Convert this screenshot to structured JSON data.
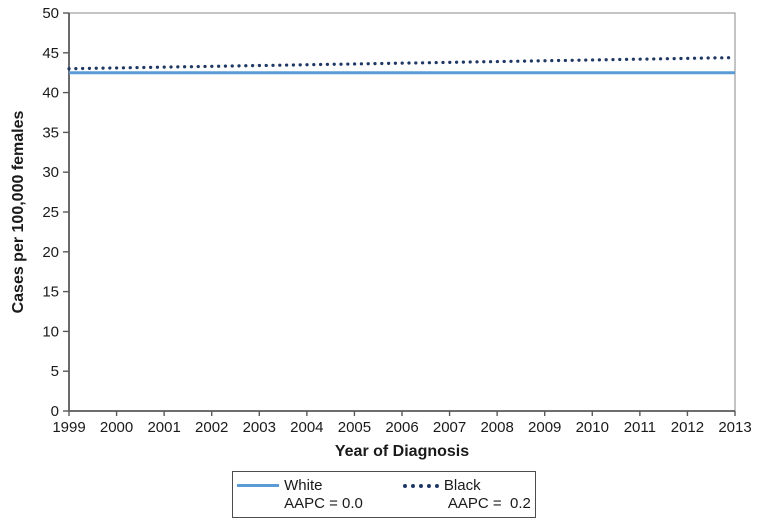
{
  "chart_data": {
    "type": "line",
    "title": "",
    "xlabel": "Year of Diagnosis",
    "ylabel": "Cases per 100,000 females",
    "x": [
      1999,
      2000,
      2001,
      2002,
      2003,
      2004,
      2005,
      2006,
      2007,
      2008,
      2009,
      2010,
      2011,
      2012,
      2013
    ],
    "ylim": [
      0,
      50
    ],
    "ytick_step": 5,
    "grid": false,
    "legend_position": "bottom",
    "series": [
      {
        "name": "White",
        "aapc_label": "AAPC = 0.0",
        "line_style": "solid",
        "color": "#5B9BD5",
        "values": [
          42.5,
          42.5,
          42.5,
          42.5,
          42.5,
          42.5,
          42.5,
          42.5,
          42.5,
          42.5,
          42.5,
          42.5,
          42.5,
          42.5,
          42.5
        ]
      },
      {
        "name": "Black",
        "aapc_label": "AAPC =  0.2",
        "line_style": "dotted",
        "color": "#1F3864",
        "values": [
          43.0,
          43.1,
          43.2,
          43.3,
          43.4,
          43.5,
          43.6,
          43.7,
          43.8,
          43.9,
          44.0,
          44.1,
          44.2,
          44.3,
          44.4
        ]
      }
    ],
    "colors": {
      "axis": "#595959",
      "plot_border": "#898989",
      "text": "#1a1a1a"
    }
  }
}
